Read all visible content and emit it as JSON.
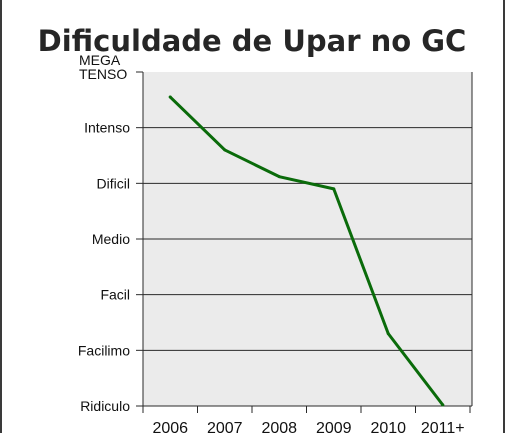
{
  "chart_data": {
    "type": "line",
    "title": "Dificuldade de Upar no GC",
    "xlabel": "",
    "ylabel": "",
    "categories": [
      "2006",
      "2007",
      "2008",
      "2009",
      "2010",
      "2011+"
    ],
    "y_levels": [
      {
        "label_lines": [
          "MEGA",
          "TENSO"
        ],
        "value": 6
      },
      {
        "label_lines": [
          "Intenso"
        ],
        "value": 5
      },
      {
        "label_lines": [
          "Dificil"
        ],
        "value": 4
      },
      {
        "label_lines": [
          "Medio"
        ],
        "value": 3
      },
      {
        "label_lines": [
          "Facil"
        ],
        "value": 2
      },
      {
        "label_lines": [
          "Facilimo"
        ],
        "value": 1
      },
      {
        "label_lines": [
          "Ridiculo"
        ],
        "value": 0
      }
    ],
    "series": [
      {
        "values": [
          5.55,
          4.6,
          4.12,
          3.9,
          1.3,
          0.02
        ]
      }
    ],
    "ylim": [
      0,
      6
    ],
    "grid": true,
    "colors": {
      "line": "#0a6b0a",
      "plot_background": "#ebebeb",
      "grid": "#2a2a2a",
      "axis": "#2a2a2a",
      "title": "#262626"
    }
  }
}
